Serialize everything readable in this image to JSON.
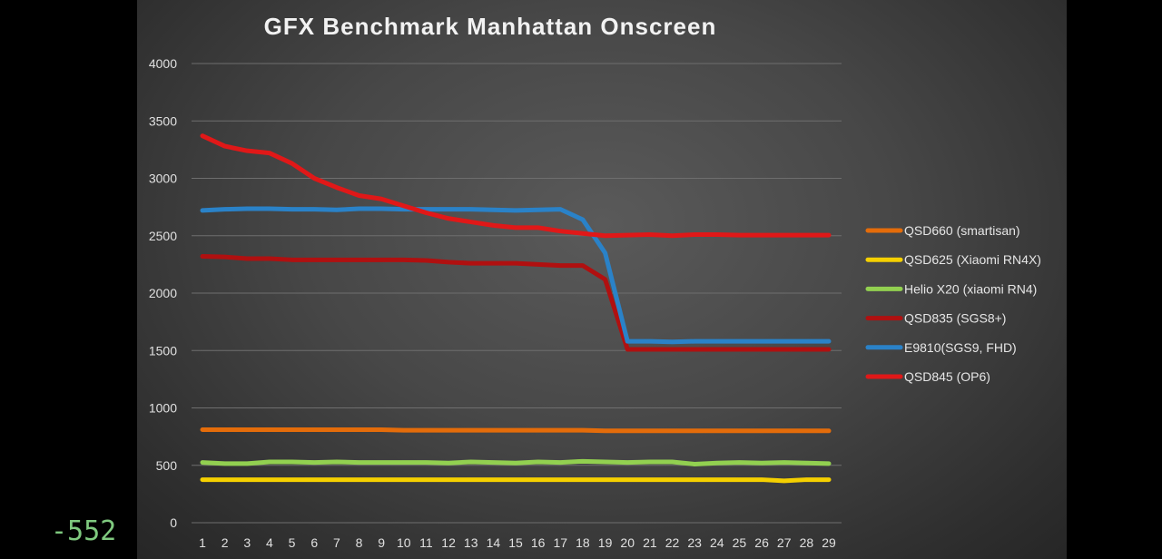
{
  "corner_readout": "-552",
  "chart_data": {
    "type": "line",
    "title": "GFX Benchmark Manhattan Onscreen",
    "xlabel": "",
    "ylabel": "",
    "x": [
      1,
      2,
      3,
      4,
      5,
      6,
      7,
      8,
      9,
      10,
      11,
      12,
      13,
      14,
      15,
      16,
      17,
      18,
      19,
      20,
      21,
      22,
      23,
      24,
      25,
      26,
      27,
      28,
      29
    ],
    "ylim": [
      0,
      4000
    ],
    "yticks": [
      0,
      500,
      1000,
      1500,
      2000,
      2500,
      3000,
      3500,
      4000
    ],
    "grid": true,
    "legend_position": "right",
    "series": [
      {
        "name": "QSD660 (smartisan)",
        "color": "#e46c0a",
        "values": [
          810,
          810,
          810,
          810,
          810,
          810,
          810,
          810,
          810,
          805,
          805,
          805,
          805,
          805,
          805,
          805,
          805,
          805,
          800,
          800,
          800,
          800,
          800,
          800,
          800,
          800,
          800,
          800,
          800
        ]
      },
      {
        "name": "QSD625 (Xiaomi RN4X)",
        "color": "#f5d000",
        "values": [
          375,
          375,
          375,
          375,
          375,
          375,
          375,
          375,
          375,
          375,
          375,
          375,
          375,
          375,
          375,
          375,
          375,
          375,
          375,
          375,
          375,
          375,
          375,
          375,
          375,
          375,
          365,
          375,
          375
        ]
      },
      {
        "name": "Helio X20 (xiaomi RN4)",
        "color": "#92d050",
        "values": [
          525,
          515,
          515,
          530,
          530,
          525,
          530,
          525,
          525,
          525,
          525,
          520,
          530,
          525,
          520,
          530,
          525,
          535,
          530,
          525,
          530,
          530,
          510,
          520,
          525,
          520,
          525,
          520,
          515
        ]
      },
      {
        "name": "QSD835 (SGS8+)",
        "color": "#b01010",
        "values": [
          2320,
          2315,
          2300,
          2300,
          2290,
          2290,
          2290,
          2290,
          2290,
          2290,
          2285,
          2270,
          2260,
          2260,
          2260,
          2250,
          2240,
          2240,
          2120,
          1510,
          1510,
          1510,
          1510,
          1510,
          1510,
          1510,
          1510,
          1510,
          1510
        ]
      },
      {
        "name": "E9810(SGS9, FHD)",
        "color": "#2a82c8",
        "values": [
          2720,
          2730,
          2735,
          2735,
          2730,
          2730,
          2725,
          2735,
          2735,
          2730,
          2730,
          2730,
          2730,
          2725,
          2720,
          2725,
          2730,
          2640,
          2350,
          1580,
          1580,
          1575,
          1580,
          1580,
          1580,
          1580,
          1580,
          1580,
          1580
        ]
      },
      {
        "name": "QSD845 (OP6)",
        "color": "#e01818",
        "values": [
          3370,
          3280,
          3240,
          3220,
          3130,
          3000,
          2920,
          2850,
          2820,
          2760,
          2700,
          2650,
          2620,
          2590,
          2570,
          2570,
          2540,
          2520,
          2500,
          2505,
          2510,
          2500,
          2510,
          2510,
          2505,
          2505,
          2505,
          2505,
          2505
        ]
      }
    ]
  }
}
